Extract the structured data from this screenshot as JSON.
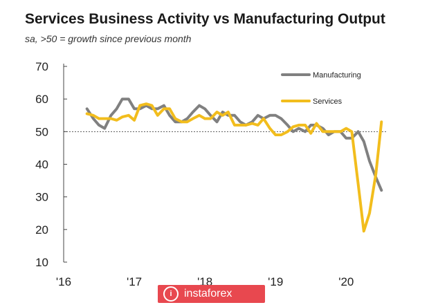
{
  "title": "Services Business Activity vs Manufacturing Output",
  "subtitle": "sa, >50 = growth since previous month",
  "watermark": {
    "text": "instaforex",
    "icon": "instaforex-logo-icon",
    "color": "#e8484f"
  },
  "chart_data": {
    "type": "line",
    "ylim": [
      10,
      70
    ],
    "yticks": [
      "10",
      "20",
      "30",
      "40",
      "50",
      "60",
      "70"
    ],
    "xlim": [
      2016.0,
      2020.83
    ],
    "xticks": [
      {
        "label": "'16",
        "x": 2016
      },
      {
        "label": "'17",
        "x": 2017
      },
      {
        "label": "'18",
        "x": 2018
      },
      {
        "label": "'19",
        "x": 2019
      },
      {
        "label": "'20",
        "x": 2020
      }
    ],
    "reference_line": 50,
    "legend_position": "top-right",
    "grid": false,
    "series": [
      {
        "name": "Manufacturing",
        "color": "#808080",
        "x": [
          2016.33,
          2016.42,
          2016.5,
          2016.58,
          2016.67,
          2016.75,
          2016.83,
          2016.92,
          2017.0,
          2017.08,
          2017.17,
          2017.25,
          2017.33,
          2017.42,
          2017.5,
          2017.58,
          2017.67,
          2017.75,
          2017.83,
          2017.92,
          2018.0,
          2018.08,
          2018.17,
          2018.25,
          2018.33,
          2018.42,
          2018.5,
          2018.58,
          2018.67,
          2018.75,
          2018.83,
          2018.92,
          2019.0,
          2019.08,
          2019.17,
          2019.25,
          2019.33,
          2019.42,
          2019.5,
          2019.58,
          2019.67,
          2019.75,
          2019.83,
          2019.92,
          2020.0,
          2020.08,
          2020.17,
          2020.25,
          2020.33,
          2020.42,
          2020.5
        ],
        "y": [
          57,
          54,
          52,
          51,
          55,
          57,
          60,
          60,
          57,
          57,
          58,
          57,
          57,
          58,
          55,
          53,
          53,
          54,
          56,
          58,
          57,
          55,
          53,
          56,
          55,
          55,
          53,
          52,
          53,
          55,
          54,
          55,
          55,
          54,
          52,
          50,
          51,
          50,
          52,
          52,
          51,
          49,
          50,
          50,
          48,
          48,
          50,
          47,
          41,
          36,
          32
        ]
      },
      {
        "name": "Services",
        "color": "#f2bd1d",
        "x": [
          2016.33,
          2016.42,
          2016.5,
          2016.58,
          2016.67,
          2016.75,
          2016.83,
          2016.92,
          2017.0,
          2017.08,
          2017.17,
          2017.25,
          2017.33,
          2017.42,
          2017.5,
          2017.58,
          2017.67,
          2017.75,
          2017.83,
          2017.92,
          2018.0,
          2018.08,
          2018.17,
          2018.25,
          2018.33,
          2018.42,
          2018.5,
          2018.58,
          2018.67,
          2018.75,
          2018.83,
          2018.92,
          2019.0,
          2019.08,
          2019.17,
          2019.25,
          2019.33,
          2019.42,
          2019.5,
          2019.58,
          2019.67,
          2019.75,
          2019.83,
          2019.92,
          2020.0,
          2020.08,
          2020.17,
          2020.25,
          2020.33,
          2020.42,
          2020.5
        ],
        "y": [
          55.5,
          55,
          54,
          54,
          54,
          53.5,
          54.5,
          55,
          53.5,
          58,
          58.5,
          58,
          55,
          57,
          57,
          54,
          53,
          53,
          54,
          55,
          54,
          54,
          56,
          55,
          56,
          52,
          52,
          52,
          52.5,
          52,
          54,
          51,
          49,
          49,
          50,
          51.5,
          52,
          52,
          49.5,
          52.5,
          50,
          50,
          50,
          50,
          51,
          50,
          34,
          19.5,
          25,
          37,
          53
        ]
      }
    ]
  }
}
